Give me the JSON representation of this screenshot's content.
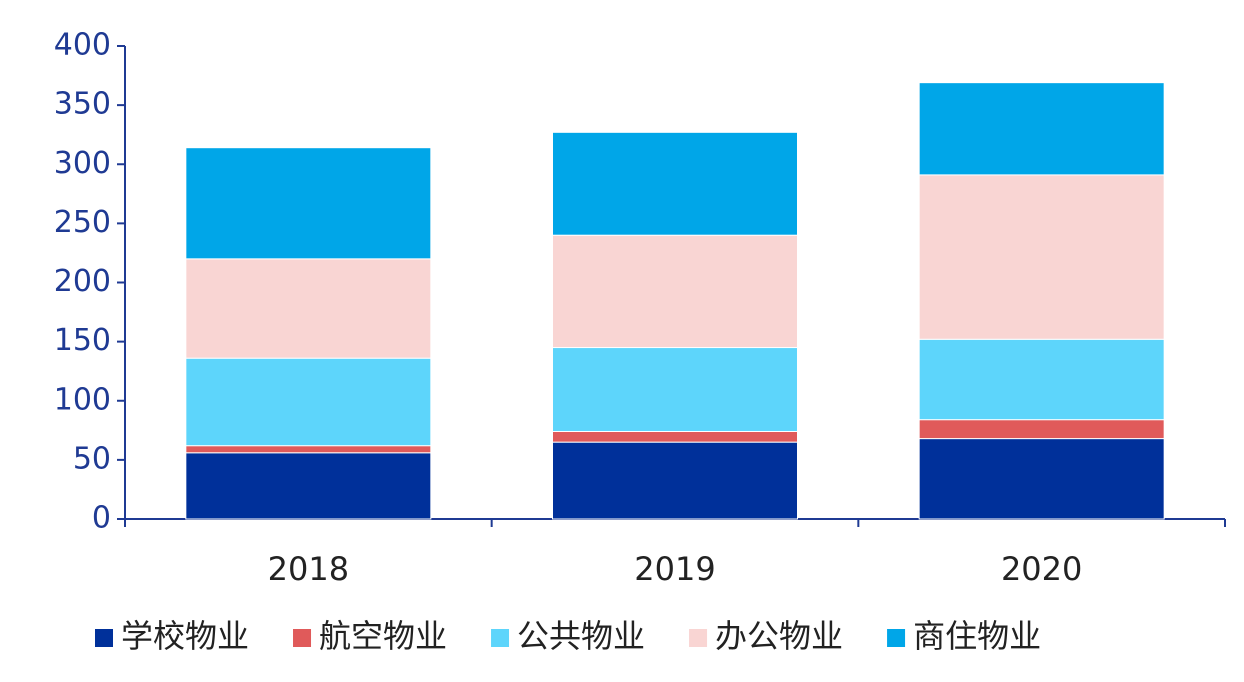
{
  "chart_data": {
    "type": "stacked_bar",
    "categories": [
      "2018",
      "2019",
      "2020"
    ],
    "series": [
      {
        "name": "学校物业",
        "color": "#00309a",
        "values": [
          56,
          65,
          68
        ]
      },
      {
        "name": "航空物业",
        "color": "#e05a5a",
        "values": [
          6,
          9,
          16
        ]
      },
      {
        "name": "公共物业",
        "color": "#5dd5fb",
        "values": [
          74,
          71,
          68
        ]
      },
      {
        "name": "办公物业",
        "color": "#f9d5d3",
        "values": [
          84,
          95,
          139
        ]
      },
      {
        "name": "商住物业",
        "color": "#00a6e8",
        "values": [
          94,
          87,
          78
        ]
      }
    ],
    "ylim": [
      0,
      400
    ],
    "yticks": [
      0,
      50,
      100,
      150,
      200,
      250,
      300,
      350,
      400
    ],
    "legend": "bottom"
  }
}
